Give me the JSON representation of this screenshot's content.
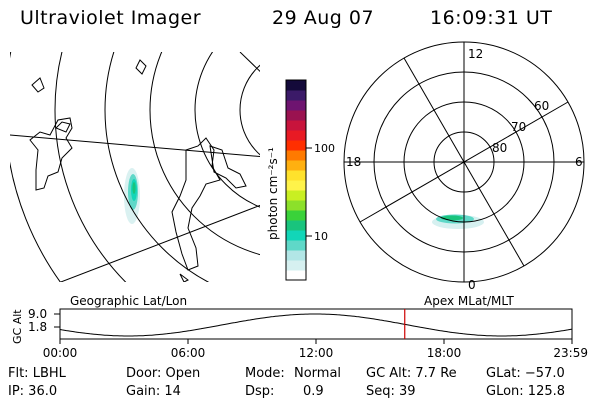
{
  "header": {
    "instrument": "Ultraviolet Imager",
    "date": "29 Aug 07",
    "time": "16:09:31 UT"
  },
  "colorbar": {
    "unit_label": "photon cm⁻²s⁻¹",
    "tick_high": "100",
    "tick_low": "10",
    "colors": [
      "#ffffff",
      "#d6f0f0",
      "#b2e6e6",
      "#5fd8c8",
      "#12d6b8",
      "#19c47d",
      "#3ad23a",
      "#8ce02a",
      "#c9ef22",
      "#fff34a",
      "#ffe22c",
      "#ffb010",
      "#ff7a00",
      "#ff2f00",
      "#e81a24",
      "#c8143c",
      "#9a1250",
      "#6e1470",
      "#3b1a68",
      "#140a3a"
    ]
  },
  "geo_map": {
    "caption": "Geographic Lat/Lon"
  },
  "polar_plot": {
    "caption": "Apex MLat/MLT",
    "mlt_labels": {
      "top": "12",
      "bottom": "0",
      "left": "18",
      "right": "6"
    },
    "lat_labels": [
      "60",
      "70",
      "80"
    ]
  },
  "altitude_plot": {
    "ylabel": "GC Alt",
    "y_ticks": [
      "9.0",
      "1.8"
    ],
    "x_ticks": [
      "00:00",
      "06:00",
      "12:00",
      "18:00",
      "23:59"
    ],
    "current_time_hours": 16.16,
    "marker_color": "#cc0000"
  },
  "info": {
    "filter": "Flt: LBHL",
    "door": "Door: Open",
    "mode_label": "Mode:",
    "mode_value": "Normal",
    "gc_alt": "GC Alt: 7.7 Re",
    "glat": "GLat: −57.0",
    "ip": "IP: 36.0",
    "gain": "Gain: 14",
    "dsp_label": "Dsp:",
    "dsp_value": "0.9",
    "seq": "Seq: 39",
    "glon": "GLon: 125.8"
  }
}
